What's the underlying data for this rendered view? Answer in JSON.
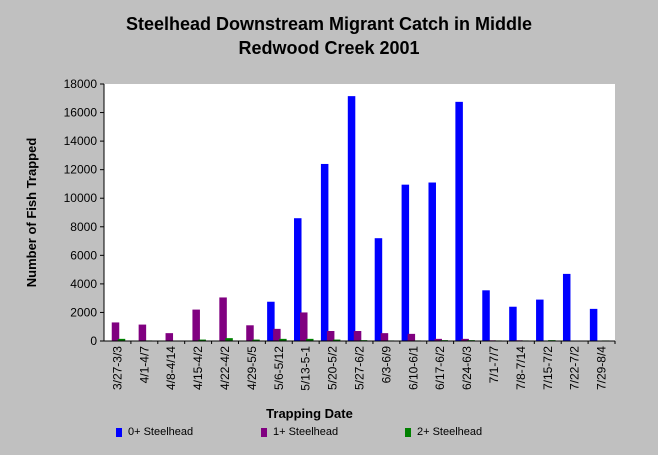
{
  "colors": {
    "background": "#c0c0c0",
    "plot_area": "#ffffff",
    "series": [
      "#0000ff",
      "#800080",
      "#008000"
    ]
  },
  "chart_data": {
    "type": "bar",
    "title": "Steelhead Downstream Migrant Catch in Middle Redwood Creek 2001",
    "title_lines": [
      "Steelhead Downstream Migrant Catch in Middle",
      "Redwood Creek 2001"
    ],
    "xlabel": "Trapping Date",
    "ylabel": "Number of Fish Trapped",
    "ylim": [
      0,
      18000
    ],
    "yticks": [
      0,
      2000,
      4000,
      6000,
      8000,
      10000,
      12000,
      14000,
      16000,
      18000
    ],
    "grid": false,
    "legend_position": "bottom",
    "categories": [
      "3/27-3/3",
      "4/1-4/7",
      "4/8-4/14",
      "4/15-4/2",
      "4/22-4/2",
      "4/29-5/5",
      "5/6-5/12",
      "5/13-5-1",
      "5/20-5/2",
      "5/27-6/2",
      "6/3-6/9",
      "6/10-6/1",
      "6/17-6/2",
      "6/24-6/3",
      "7/1-7/7",
      "7/8-7/14",
      "7/15-7/2",
      "7/22-7/2",
      "7/29-8/4"
    ],
    "series": [
      {
        "name": "0+ Steelhead",
        "values": [
          0,
          0,
          0,
          0,
          0,
          0,
          2750,
          8600,
          12400,
          17150,
          7200,
          10950,
          11100,
          16750,
          3550,
          2400,
          2900,
          4700,
          2250
        ]
      },
      {
        "name": "1+ Steelhead",
        "values": [
          1300,
          1150,
          550,
          2200,
          3050,
          1100,
          850,
          2000,
          700,
          700,
          550,
          500,
          150,
          150,
          50,
          50,
          30,
          30,
          30
        ]
      },
      {
        "name": "2+ Steelhead",
        "values": [
          150,
          40,
          30,
          100,
          200,
          100,
          150,
          150,
          100,
          60,
          40,
          40,
          60,
          60,
          40,
          40,
          60,
          30,
          40
        ]
      }
    ]
  }
}
